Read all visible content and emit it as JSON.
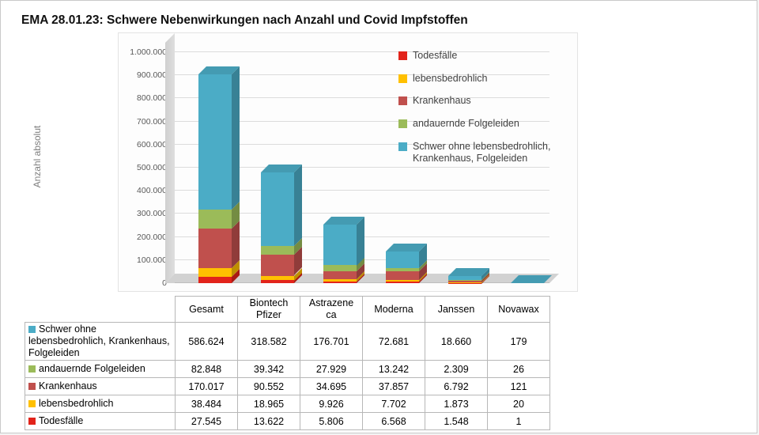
{
  "page": {
    "title": "EMA 28.01.23: Schwere Nebenwirkungen nach Anzahl und Covid Impfstoffen"
  },
  "chart_data": {
    "type": "bar",
    "stacked": true,
    "pseudo_3d": true,
    "title": "EMA 28.01.23: Schwere Nebenwirkungen nach Anzahl und Covid Impfstoffen",
    "ylabel": "Anzahl absolut",
    "xlabel": "",
    "ylim": [
      0,
      1000000
    ],
    "ytick_step": 100000,
    "ytick_labels": [
      "0",
      "100.000",
      "200.000",
      "300.000",
      "400.000",
      "500.000",
      "600.000",
      "700.000",
      "800.000",
      "900.000",
      "1.000.000"
    ],
    "grid": true,
    "legend_position": "top-right-inside",
    "categories": [
      "Gesamt",
      "Biontech Pfizer",
      "Astrazene ca",
      "Moderna",
      "Janssen",
      "Novawax"
    ],
    "series": [
      {
        "name": "Todesfälle",
        "color": "#e2231a",
        "values": [
          27545,
          13622,
          5806,
          6568,
          1548,
          1
        ]
      },
      {
        "name": "lebensbedrohlich",
        "color": "#ffc000",
        "values": [
          38484,
          18965,
          9926,
          7702,
          1873,
          20
        ]
      },
      {
        "name": "Krankenhaus",
        "color": "#c0504d",
        "values": [
          170017,
          90552,
          34695,
          37857,
          6792,
          121
        ]
      },
      {
        "name": "andauernde Folgeleiden",
        "color": "#9bbb59",
        "values": [
          82848,
          39342,
          27929,
          13242,
          2309,
          26
        ]
      },
      {
        "name": "Schwer ohne lebensbedrohlich, Krankenhaus, Folgeleiden",
        "color": "#4bacc6",
        "values": [
          586624,
          318582,
          176701,
          72681,
          18660,
          179
        ]
      }
    ],
    "legend": [
      {
        "label": "Todesfälle",
        "color": "#e2231a"
      },
      {
        "label": "lebensbedrohlich",
        "color": "#ffc000"
      },
      {
        "label": "Krankenhaus",
        "color": "#c0504d"
      },
      {
        "label": "andauernde Folgeleiden",
        "color": "#9bbb59"
      },
      {
        "label": "Schwer ohne lebensbedrohlich, Krankenhaus, Folgeleiden",
        "color": "#4bacc6"
      }
    ]
  },
  "table": {
    "columns": [
      "Gesamt",
      "Biontech Pfizer",
      "Astrazene ca",
      "Moderna",
      "Janssen",
      "Novawax"
    ],
    "rows": [
      {
        "label": "Schwer ohne lebensbedrohlich, Krankenhaus, Folgeleiden",
        "color": "#4bacc6",
        "values": [
          "586.624",
          "318.582",
          "176.701",
          "72.681",
          "18.660",
          "179"
        ]
      },
      {
        "label": "andauernde Folgeleiden",
        "color": "#9bbb59",
        "values": [
          "82.848",
          "39.342",
          "27.929",
          "13.242",
          "2.309",
          "26"
        ]
      },
      {
        "label": "Krankenhaus",
        "color": "#c0504d",
        "values": [
          "170.017",
          "90.552",
          "34.695",
          "37.857",
          "6.792",
          "121"
        ]
      },
      {
        "label": "lebensbedrohlich",
        "color": "#ffc000",
        "values": [
          "38.484",
          "18.965",
          "9.926",
          "7.702",
          "1.873",
          "20"
        ]
      },
      {
        "label": "Todesfälle",
        "color": "#e2231a",
        "values": [
          "27.545",
          "13.622",
          "5.806",
          "6.568",
          "1.548",
          "1"
        ]
      }
    ]
  }
}
